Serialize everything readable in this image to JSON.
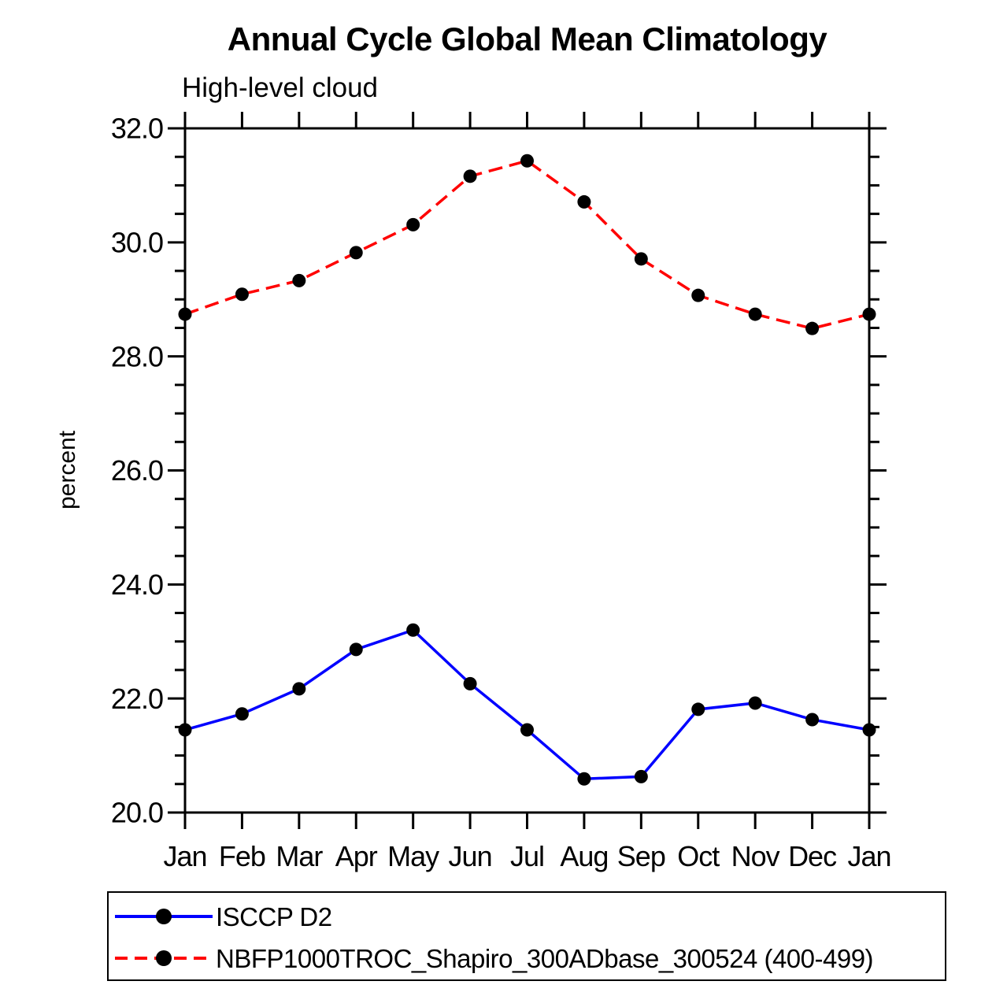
{
  "page": {
    "background": "#ffffff",
    "text_color": "#000000"
  },
  "chart_data": {
    "type": "line",
    "title": "Annual Cycle Global Mean Climatology",
    "subtitle": "High-level cloud",
    "xlabel": "",
    "ylabel": "percent",
    "x_tick_labels": [
      "Jan",
      "Feb",
      "Mar",
      "Apr",
      "May",
      "Jun",
      "Jul",
      "Aug",
      "Sep",
      "Oct",
      "Nov",
      "Dec",
      "Jan"
    ],
    "ylim": [
      20.0,
      32.0
    ],
    "y_major_tick_step": 2.0,
    "y_minor_tick_step": 0.5,
    "y_tick_labels": [
      "20.0",
      "22.0",
      "24.0",
      "26.0",
      "28.0",
      "30.0",
      "32.0"
    ],
    "grid": false,
    "axis_color": "#000000",
    "legend_position": "bottom-left-box",
    "series": [
      {
        "name": "ISCCP D2",
        "color": "#0000ff",
        "line_style": "solid",
        "marker": "filled-circle",
        "marker_color": "#000000",
        "values": [
          21.45,
          21.73,
          22.17,
          22.86,
          23.2,
          22.26,
          21.45,
          20.59,
          20.63,
          21.81,
          21.92,
          21.63,
          21.45
        ]
      },
      {
        "name": "NBFP1000TROC_Shapiro_300ADbase_300524 (400-499)",
        "color": "#ff0000",
        "line_style": "dashed",
        "marker": "filled-circle",
        "marker_color": "#000000",
        "values": [
          28.74,
          29.09,
          29.33,
          29.82,
          30.31,
          31.16,
          31.43,
          30.71,
          29.71,
          29.07,
          28.74,
          28.49,
          28.74
        ]
      }
    ]
  }
}
